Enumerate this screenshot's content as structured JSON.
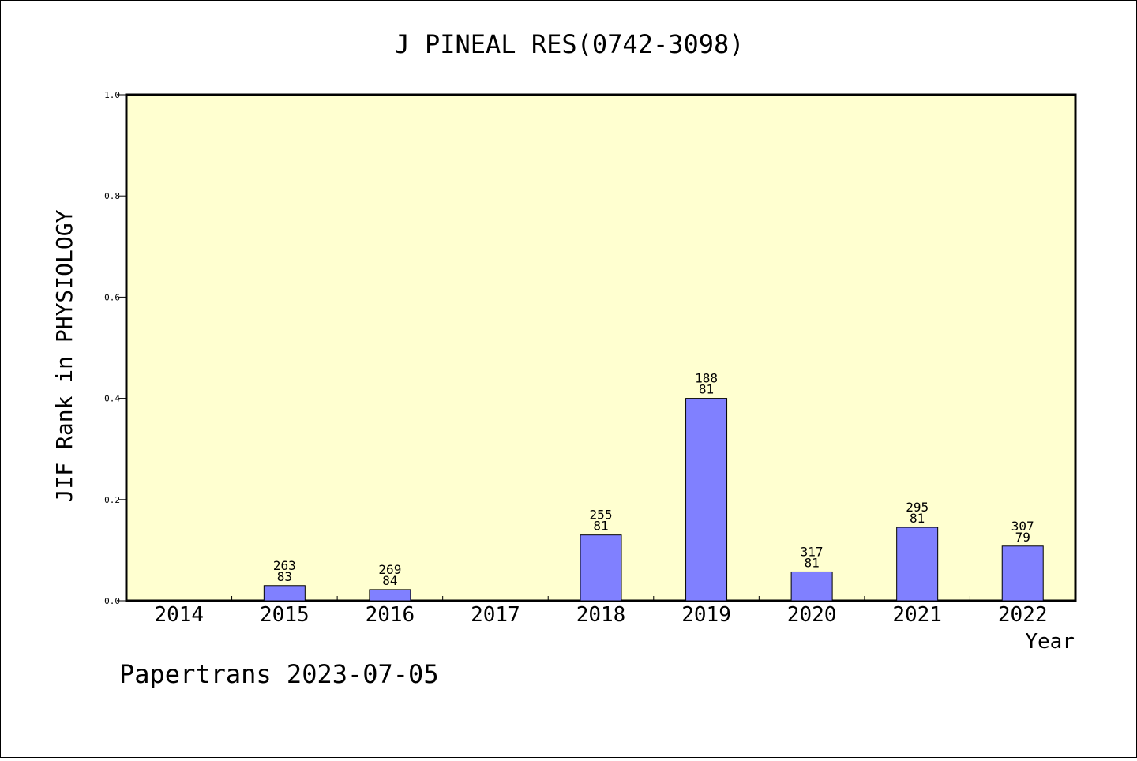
{
  "chart_data": {
    "type": "bar",
    "title": "J PINEAL RES(0742-3098)",
    "xlabel": "Year",
    "ylabel": "JIF Rank in PHYSIOLOGY",
    "ylim": [
      0,
      1.0
    ],
    "yticks": [
      "0.0",
      "0.2",
      "0.4",
      "0.6",
      "0.8",
      "1.0"
    ],
    "categories": [
      "2014",
      "2015",
      "2016",
      "2017",
      "2018",
      "2019",
      "2020",
      "2021",
      "2022"
    ],
    "values": [
      null,
      0.03,
      0.022,
      null,
      0.13,
      0.4,
      0.057,
      0.145,
      0.108
    ],
    "label_top": [
      "",
      "263",
      "269",
      "",
      "255",
      "188",
      "317",
      "295",
      "307"
    ],
    "label_bottom": [
      "",
      "83",
      "84",
      "",
      "81",
      "81",
      "81",
      "81",
      "79"
    ],
    "grid": false,
    "plot_background": "#ffffd0",
    "bar_color": "#8080ff"
  },
  "footer": "Papertrans 2023-07-05"
}
